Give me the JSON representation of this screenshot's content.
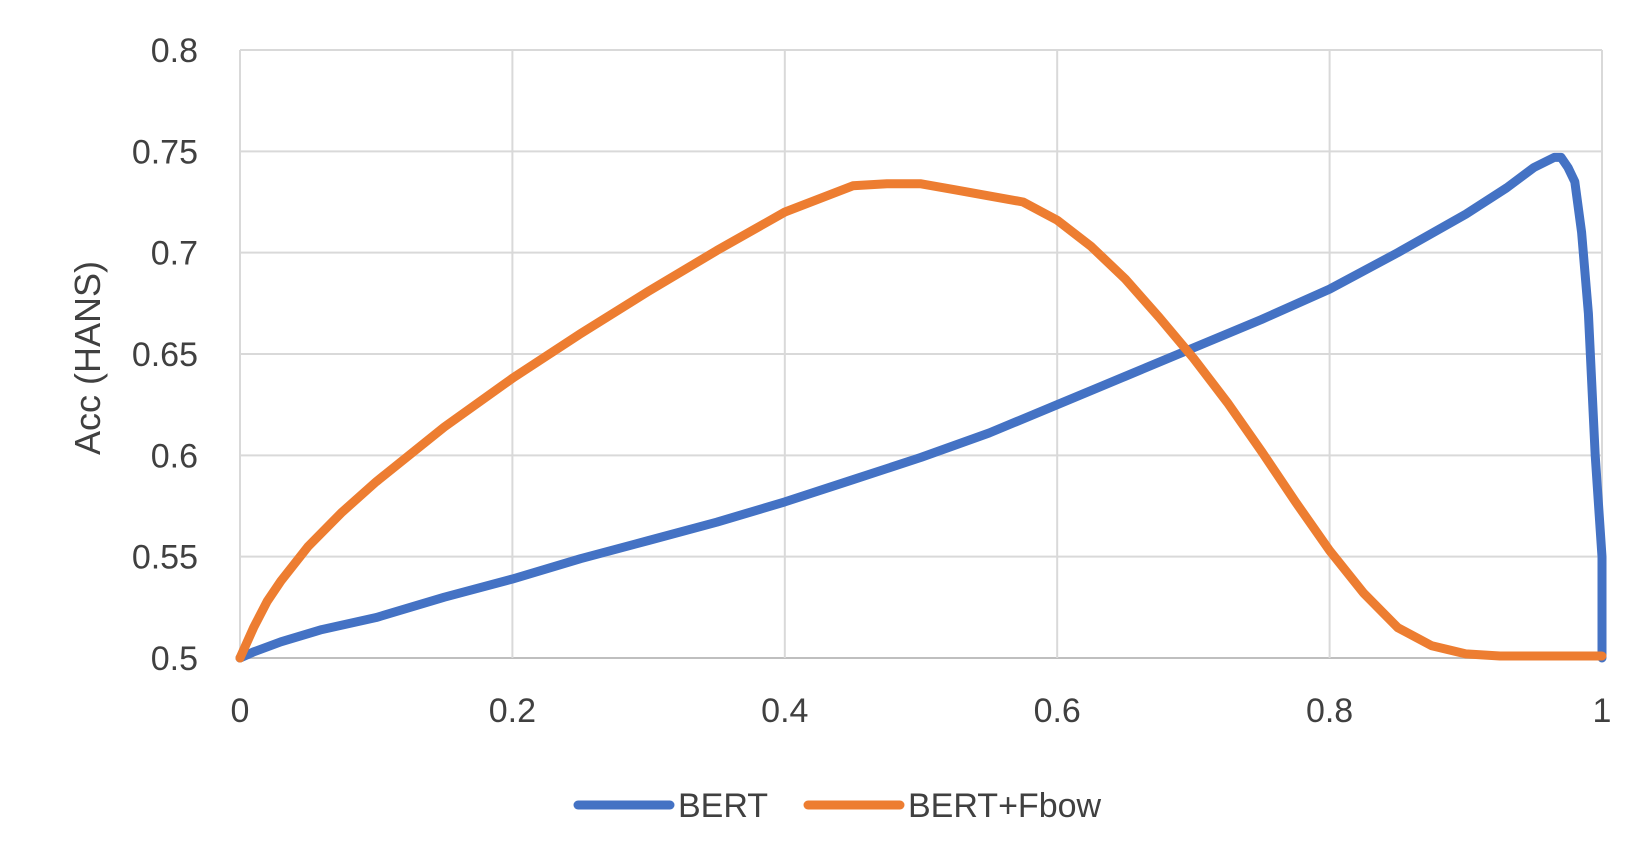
{
  "chart_data": {
    "type": "line",
    "title": "",
    "xlabel": "",
    "ylabel": "Acc (HANS)",
    "xlim": [
      0,
      1
    ],
    "ylim": [
      0.5,
      0.8
    ],
    "x_ticks": [
      "0",
      "0.2",
      "0.4",
      "0.6",
      "0.8",
      "1"
    ],
    "y_ticks": [
      "0.5",
      "0.55",
      "0.6",
      "0.65",
      "0.7",
      "0.75",
      "0.8"
    ],
    "grid": true,
    "legend_position": "bottom",
    "series": [
      {
        "name": "BERT",
        "color": "#4472C4",
        "x": [
          0,
          0.01,
          0.03,
          0.06,
          0.1,
          0.15,
          0.2,
          0.25,
          0.3,
          0.35,
          0.4,
          0.45,
          0.5,
          0.55,
          0.6,
          0.65,
          0.7,
          0.75,
          0.8,
          0.85,
          0.9,
          0.93,
          0.95,
          0.965,
          0.97,
          0.975,
          0.98,
          0.985,
          0.99,
          0.995,
          1.0,
          1.0
        ],
        "y": [
          0.5,
          0.503,
          0.508,
          0.514,
          0.52,
          0.53,
          0.539,
          0.549,
          0.558,
          0.567,
          0.577,
          0.588,
          0.599,
          0.611,
          0.625,
          0.639,
          0.653,
          0.667,
          0.682,
          0.7,
          0.719,
          0.732,
          0.742,
          0.747,
          0.747,
          0.742,
          0.735,
          0.71,
          0.67,
          0.6,
          0.55,
          0.5
        ]
      },
      {
        "name": "BERT+Fbow",
        "color": "#ED7D31",
        "x": [
          0,
          0.01,
          0.02,
          0.03,
          0.05,
          0.075,
          0.1,
          0.15,
          0.2,
          0.25,
          0.3,
          0.35,
          0.4,
          0.45,
          0.475,
          0.5,
          0.525,
          0.55,
          0.575,
          0.6,
          0.625,
          0.65,
          0.675,
          0.7,
          0.725,
          0.75,
          0.775,
          0.8,
          0.825,
          0.85,
          0.875,
          0.9,
          0.925,
          0.95,
          0.975,
          1.0
        ],
        "y": [
          0.5,
          0.515,
          0.528,
          0.538,
          0.555,
          0.572,
          0.587,
          0.614,
          0.638,
          0.66,
          0.681,
          0.701,
          0.72,
          0.733,
          0.734,
          0.734,
          0.731,
          0.728,
          0.725,
          0.716,
          0.703,
          0.687,
          0.668,
          0.648,
          0.626,
          0.602,
          0.577,
          0.553,
          0.532,
          0.515,
          0.506,
          0.502,
          0.501,
          0.501,
          0.501,
          0.501
        ]
      }
    ]
  }
}
